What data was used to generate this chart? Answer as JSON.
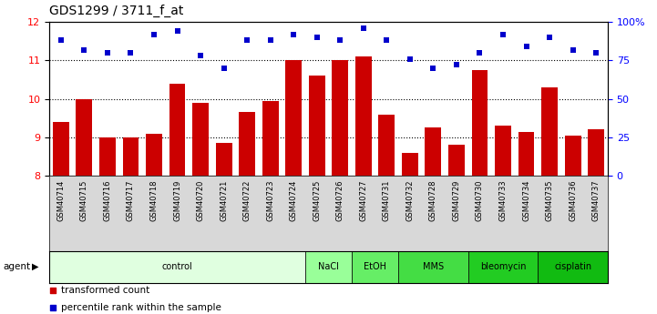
{
  "title": "GDS1299 / 3711_f_at",
  "samples": [
    "GSM40714",
    "GSM40715",
    "GSM40716",
    "GSM40717",
    "GSM40718",
    "GSM40719",
    "GSM40720",
    "GSM40721",
    "GSM40722",
    "GSM40723",
    "GSM40724",
    "GSM40725",
    "GSM40726",
    "GSM40727",
    "GSM40731",
    "GSM40732",
    "GSM40728",
    "GSM40729",
    "GSM40730",
    "GSM40733",
    "GSM40734",
    "GSM40735",
    "GSM40736",
    "GSM40737"
  ],
  "bar_values": [
    9.4,
    10.0,
    9.0,
    9.0,
    9.1,
    10.4,
    9.9,
    8.85,
    9.65,
    9.95,
    11.0,
    10.6,
    11.0,
    11.1,
    9.6,
    8.6,
    9.25,
    8.8,
    10.75,
    9.3,
    9.15,
    10.3,
    9.05,
    9.2
  ],
  "percentile_values": [
    88,
    82,
    80,
    80,
    92,
    94,
    78,
    70,
    88,
    88,
    92,
    90,
    88,
    96,
    88,
    76,
    70,
    72,
    80,
    92,
    84,
    90,
    82,
    80
  ],
  "groups": [
    {
      "label": "control",
      "start": 0,
      "end": 11,
      "color": "#e0ffe0"
    },
    {
      "label": "NaCl",
      "start": 11,
      "end": 13,
      "color": "#99ff99"
    },
    {
      "label": "EtOH",
      "start": 13,
      "end": 15,
      "color": "#66ee66"
    },
    {
      "label": "MMS",
      "start": 15,
      "end": 18,
      "color": "#44dd44"
    },
    {
      "label": "bleomycin",
      "start": 18,
      "end": 21,
      "color": "#22cc22"
    },
    {
      "label": "cisplatin",
      "start": 21,
      "end": 24,
      "color": "#11bb11"
    }
  ],
  "ylim_left": [
    8,
    12
  ],
  "ylim_right": [
    0,
    100
  ],
  "yticks_left": [
    8,
    9,
    10,
    11,
    12
  ],
  "yticks_right": [
    0,
    25,
    50,
    75,
    100
  ],
  "ytick_labels_right": [
    "0",
    "25",
    "50",
    "75",
    "100%"
  ],
  "bar_color": "#cc0000",
  "dot_color": "#0000cc",
  "background_color": "#ffffff",
  "title_fontsize": 10,
  "legend_items": [
    "transformed count",
    "percentile rank within the sample"
  ]
}
